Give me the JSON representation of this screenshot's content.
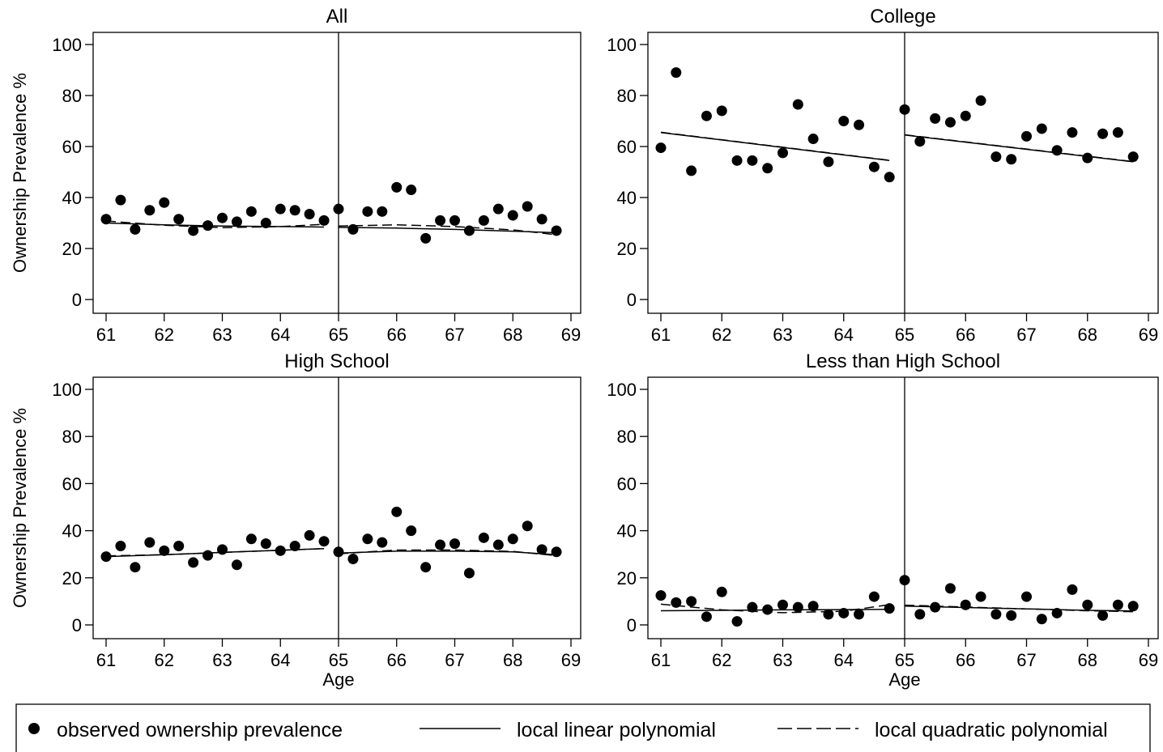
{
  "figure": {
    "y_axis_title": "Ownership Prevalence %",
    "x_axis_title": "Age",
    "cutoff": 65,
    "xlim": [
      61,
      69
    ],
    "ylim": [
      0,
      100
    ],
    "x_ticks": [
      61,
      62,
      63,
      64,
      65,
      66,
      67,
      68,
      69
    ],
    "y_ticks": [
      0,
      20,
      40,
      60,
      80,
      100
    ],
    "marker_color": "#000000"
  },
  "legend": {
    "items": [
      {
        "label": "observed ownership prevalence",
        "symbol": "dot"
      },
      {
        "label": "local linear polynomial",
        "symbol": "solid-line"
      },
      {
        "label": "local quadratic polynomial",
        "symbol": "dashed-line"
      }
    ]
  },
  "chart_data": [
    {
      "type": "scatter",
      "title": "All",
      "xlabel": "",
      "ylabel": "Ownership Prevalence %",
      "xlim": [
        61,
        69
      ],
      "ylim": [
        0,
        100
      ],
      "series": [
        {
          "name": "observed ownership prevalence",
          "kind": "points",
          "x": [
            61.0,
            61.25,
            61.5,
            61.75,
            62.0,
            62.25,
            62.5,
            62.75,
            63.0,
            63.25,
            63.5,
            63.75,
            64.0,
            64.25,
            64.5,
            64.75,
            65.0,
            65.25,
            65.5,
            65.75,
            66.0,
            66.25,
            66.5,
            66.75,
            67.0,
            67.25,
            67.5,
            67.75,
            68.0,
            68.25,
            68.5,
            68.75
          ],
          "y": [
            31.5,
            39,
            27.5,
            35,
            38,
            31.5,
            27,
            29,
            32,
            30.5,
            34.5,
            30,
            35.5,
            35,
            33.5,
            31,
            35.5,
            27.5,
            34.5,
            34.5,
            44,
            43,
            24,
            31,
            31,
            27,
            31,
            35.5,
            33,
            36.5,
            31.5,
            27
          ]
        },
        {
          "name": "local linear polynomial",
          "kind": "line",
          "segments": [
            {
              "x": [
                61,
                62,
                63,
                64,
                64.75
              ],
              "y": [
                30,
                29.3,
                28.8,
                28.6,
                28.4
              ]
            },
            {
              "x": [
                65,
                66,
                67,
                68,
                68.75
              ],
              "y": [
                28.3,
                28.0,
                27.5,
                26.8,
                26.2
              ]
            }
          ]
        },
        {
          "name": "local quadratic polynomial",
          "kind": "line",
          "segments": [
            {
              "x": [
                61,
                62,
                63,
                64,
                64.75
              ],
              "y": [
                30.8,
                29.1,
                28.2,
                28.6,
                29.5
              ]
            },
            {
              "x": [
                65,
                66,
                67,
                68,
                68.75
              ],
              "y": [
                28.8,
                29.3,
                28.6,
                27.3,
                25.4
              ]
            }
          ]
        }
      ]
    },
    {
      "type": "scatter",
      "title": "College",
      "xlabel": "",
      "ylabel": "",
      "xlim": [
        61,
        69
      ],
      "ylim": [
        0,
        100
      ],
      "series": [
        {
          "name": "observed ownership prevalence",
          "kind": "points",
          "x": [
            61.0,
            61.25,
            61.5,
            61.75,
            62.0,
            62.25,
            62.5,
            62.75,
            63.0,
            63.25,
            63.5,
            63.75,
            64.0,
            64.25,
            64.5,
            64.75,
            65.0,
            65.25,
            65.5,
            65.75,
            66.0,
            66.25,
            66.5,
            66.75,
            67.0,
            67.25,
            67.5,
            67.75,
            68.0,
            68.25,
            68.5,
            68.75
          ],
          "y": [
            59.5,
            89,
            50.5,
            72,
            74,
            54.5,
            54.5,
            51.5,
            57.5,
            76.5,
            63,
            54,
            70,
            68.5,
            52,
            48,
            74.5,
            62,
            71,
            69.5,
            72,
            78,
            56,
            55,
            64,
            67,
            58.5,
            65.5,
            55.5,
            65,
            65.5,
            56
          ]
        },
        {
          "name": "local linear polynomial",
          "kind": "line",
          "segments": [
            {
              "x": [
                61,
                64.75
              ],
              "y": [
                65.5,
                54.5
              ]
            },
            {
              "x": [
                65,
                68.75
              ],
              "y": [
                64.5,
                54.0
              ]
            }
          ]
        },
        {
          "name": "local quadratic polynomial",
          "kind": "line",
          "segments": [
            {
              "x": [
                61,
                64.75
              ],
              "y": [
                65.6,
                54.6
              ]
            },
            {
              "x": [
                65,
                68.75
              ],
              "y": [
                64.6,
                54.1
              ]
            }
          ]
        }
      ]
    },
    {
      "type": "scatter",
      "title": "High School",
      "xlabel": "Age",
      "ylabel": "Ownership Prevalence %",
      "xlim": [
        61,
        69
      ],
      "ylim": [
        0,
        100
      ],
      "series": [
        {
          "name": "observed ownership prevalence",
          "kind": "points",
          "x": [
            61.0,
            61.25,
            61.5,
            61.75,
            62.0,
            62.25,
            62.5,
            62.75,
            63.0,
            63.25,
            63.5,
            63.75,
            64.0,
            64.25,
            64.5,
            64.75,
            65.0,
            65.25,
            65.5,
            65.75,
            66.0,
            66.25,
            66.5,
            66.75,
            67.0,
            67.25,
            67.5,
            67.75,
            68.0,
            68.25,
            68.5,
            68.75
          ],
          "y": [
            29,
            33.5,
            24.5,
            35,
            31.5,
            33.5,
            26.5,
            29.5,
            32,
            25.5,
            36.5,
            34.5,
            31.5,
            33.5,
            38,
            35.5,
            31,
            28,
            36.5,
            35,
            48,
            40,
            24.5,
            34,
            34.5,
            22,
            37,
            34,
            36.5,
            42,
            32,
            31
          ]
        },
        {
          "name": "local linear polynomial",
          "kind": "line",
          "segments": [
            {
              "x": [
                61,
                62,
                63,
                64,
                64.75
              ],
              "y": [
                29,
                29.8,
                30.8,
                31.7,
                32.4
              ]
            },
            {
              "x": [
                65,
                66,
                67,
                68,
                68.75
              ],
              "y": [
                30.5,
                31.3,
                31.3,
                31.0,
                29.8
              ]
            }
          ]
        },
        {
          "name": "local quadratic polynomial",
          "kind": "line",
          "segments": [
            {
              "x": [
                61,
                62,
                63,
                64,
                64.75
              ],
              "y": [
                29.3,
                29.8,
                30.8,
                31.7,
                32.4
              ]
            },
            {
              "x": [
                65,
                66,
                67,
                68,
                68.75
              ],
              "y": [
                30.2,
                31.8,
                31.8,
                31.2,
                29.4
              ]
            }
          ]
        }
      ]
    },
    {
      "type": "scatter",
      "title": "Less than High School",
      "xlabel": "Age",
      "ylabel": "",
      "xlim": [
        61,
        69
      ],
      "ylim": [
        0,
        100
      ],
      "series": [
        {
          "name": "observed ownership prevalence",
          "kind": "points",
          "x": [
            61.0,
            61.25,
            61.5,
            61.75,
            62.0,
            62.25,
            62.5,
            62.75,
            63.0,
            63.25,
            63.5,
            63.75,
            64.0,
            64.25,
            64.5,
            64.75,
            65.0,
            65.25,
            65.5,
            65.75,
            66.0,
            66.25,
            66.5,
            66.75,
            67.0,
            67.25,
            67.5,
            67.75,
            68.0,
            68.25,
            68.5,
            68.75
          ],
          "y": [
            12.5,
            9.5,
            10,
            3.5,
            14,
            1.5,
            7.5,
            6.5,
            8.5,
            7.5,
            8,
            4.5,
            5,
            4.5,
            12,
            7,
            19,
            4.5,
            7.5,
            15.5,
            8.5,
            12,
            4.5,
            4,
            12,
            2.5,
            5,
            15,
            8.5,
            4,
            8.5,
            8
          ]
        },
        {
          "name": "local linear polynomial",
          "kind": "line",
          "segments": [
            {
              "x": [
                61,
                62,
                63,
                64,
                64.75
              ],
              "y": [
                6,
                6.2,
                6.4,
                6.5,
                6.6
              ]
            },
            {
              "x": [
                65,
                66,
                67,
                68,
                68.75
              ],
              "y": [
                8,
                7.4,
                6.8,
                6.2,
                5.9
              ]
            }
          ]
        },
        {
          "name": "local quadratic polynomial",
          "kind": "line",
          "segments": [
            {
              "x": [
                61,
                62,
                63,
                64,
                64.75
              ],
              "y": [
                8.8,
                6.4,
                5.2,
                5.8,
                8.6
              ]
            },
            {
              "x": [
                65,
                66,
                67,
                68,
                68.75
              ],
              "y": [
                8.4,
                7.6,
                6.8,
                6.0,
                5.6
              ]
            }
          ]
        }
      ]
    }
  ]
}
